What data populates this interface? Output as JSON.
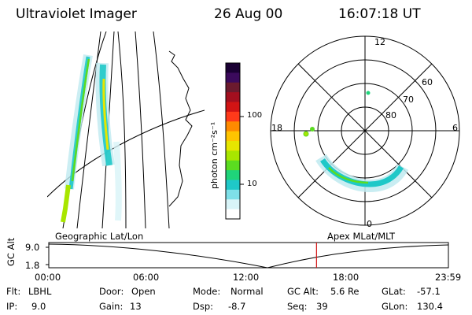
{
  "header": {
    "title": "Ultraviolet Imager",
    "date": "26 Aug 00",
    "time": "16:07:18 UT"
  },
  "colorbar": {
    "label": "photon cm⁻²s⁻¹",
    "ticks": [
      "100",
      "10"
    ],
    "colors": [
      "#1a0033",
      "#3b0a5c",
      "#6b1a2e",
      "#a30f1f",
      "#d21414",
      "#ff3a1a",
      "#ff8a00",
      "#ffc400",
      "#e6e600",
      "#a8e600",
      "#5bdc20",
      "#1fd47a",
      "#1fc8c8",
      "#7ee0e8",
      "#d8f4f8",
      "#ffffff"
    ]
  },
  "polar": {
    "hour_labels": [
      "12",
      "18",
      "6",
      "0"
    ],
    "lat_labels": [
      "60",
      "70",
      "80"
    ]
  },
  "map_labels": {
    "left": "Geographic Lat/Lon",
    "right": "Apex MLat/MLT"
  },
  "altitude_plot": {
    "ylabel": "GC Alt",
    "yticks": [
      "9.0",
      "1.8"
    ],
    "xticks": [
      "00:00",
      "06:00",
      "12:00",
      "18:00",
      "23:59"
    ],
    "current_time_fraction": 0.67
  },
  "info": {
    "flt": {
      "label": "Flt:",
      "value": "LBHL"
    },
    "ip": {
      "label": "IP:",
      "value": "9.0"
    },
    "door": {
      "label": "Door:",
      "value": "Open"
    },
    "gain": {
      "label": "Gain:",
      "value": "13"
    },
    "mode": {
      "label": "Mode:",
      "value": "Normal"
    },
    "dsp": {
      "label": "Dsp:",
      "value": "-8.7"
    },
    "gcalt": {
      "label": "GC Alt:",
      "value": "5.6 Re"
    },
    "seq": {
      "label": "Seq:",
      "value": "39"
    },
    "glat": {
      "label": "GLat:",
      "value": "-57.1"
    },
    "glon": {
      "label": "GLon:",
      "value": "130.4"
    }
  }
}
